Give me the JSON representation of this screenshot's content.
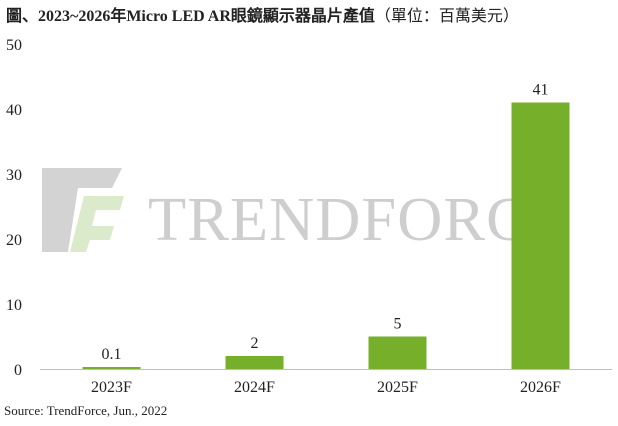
{
  "title": "圖、2023~2026年Micro LED AR眼鏡顯示器晶片產值",
  "title_unit": "（單位：百萬美元）",
  "source": "Source: TrendForce, Jun., 2022",
  "watermark": "TrendForce",
  "colors": {
    "bar": "#76b02a",
    "axis": "#bfbfbf",
    "text": "#222222",
    "watermark_dark": "#c9c9c9",
    "watermark_light": "#d6e6c4"
  },
  "chart_data": {
    "type": "bar",
    "categories": [
      "2023F",
      "2024F",
      "2025F",
      "2026F"
    ],
    "values": [
      0.1,
      2,
      5,
      41
    ],
    "data_labels": [
      "0.1",
      "2",
      "5",
      "41"
    ],
    "ylim": [
      0,
      50
    ],
    "yticks": [
      0,
      10,
      20,
      30,
      40,
      50
    ],
    "grid": false
  }
}
